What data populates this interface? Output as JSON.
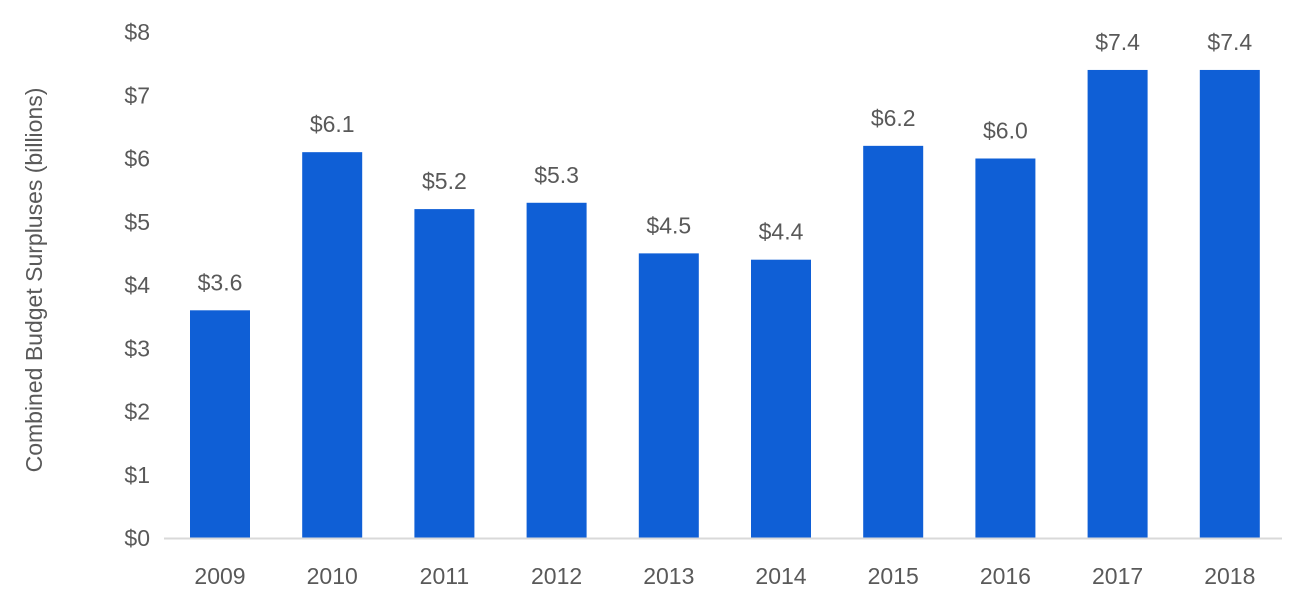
{
  "chart_data": {
    "type": "bar",
    "title": "",
    "xlabel": "",
    "ylabel": "Combined Budget Surpluses (billions)",
    "ylim": [
      0,
      8
    ],
    "yticks": [
      0,
      1,
      2,
      3,
      4,
      5,
      6,
      7,
      8
    ],
    "ytick_labels": [
      "$0",
      "$1",
      "$2",
      "$3",
      "$4",
      "$5",
      "$6",
      "$7",
      "$8"
    ],
    "categories": [
      "2009",
      "2010",
      "2011",
      "2012",
      "2013",
      "2014",
      "2015",
      "2016",
      "2017",
      "2018"
    ],
    "values": [
      3.6,
      6.1,
      5.2,
      5.3,
      4.5,
      4.4,
      6.2,
      6.0,
      7.4,
      7.4
    ],
    "data_labels": [
      "$3.6",
      "$6.1",
      "$5.2",
      "$5.3",
      "$4.5",
      "$4.4",
      "$6.2",
      "$6.0",
      "$7.4",
      "$7.4"
    ],
    "grid": false,
    "legend": "none",
    "colors": {
      "bar": "#0f5fd6",
      "axis": "#d9d9d9",
      "text": "#595959"
    }
  }
}
